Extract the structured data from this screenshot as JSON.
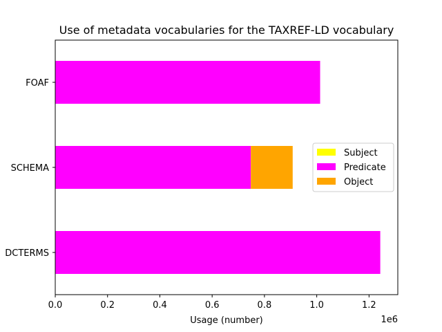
{
  "chart_data": {
    "type": "bar",
    "orientation": "horizontal",
    "stacked": true,
    "title": "Use of metadata vocabularies for the TAXREF-LD vocabulary",
    "xlabel": "Usage (number)",
    "ylabel": "",
    "x_offset_label": "1e6",
    "scale": 1000000,
    "xlim": [
      0,
      1.31
    ],
    "xticks": [
      "0.0",
      "0.2",
      "0.4",
      "0.6",
      "0.8",
      "1.0",
      "1.2"
    ],
    "xtick_values": [
      0,
      0.2,
      0.4,
      0.6,
      0.8,
      1.0,
      1.2
    ],
    "categories": [
      "DCTERMS",
      "SCHEMA",
      "FOAF"
    ],
    "series": [
      {
        "name": "Subject",
        "color": "#ffff00",
        "values": [
          0,
          0,
          0
        ]
      },
      {
        "name": "Predicate",
        "color": "#ff00ff",
        "values": [
          1.243,
          0.748,
          1.013
        ]
      },
      {
        "name": "Object",
        "color": "#ffa500",
        "values": [
          0,
          0.16,
          0
        ]
      }
    ],
    "grid": false,
    "legend_position": "center-right"
  }
}
